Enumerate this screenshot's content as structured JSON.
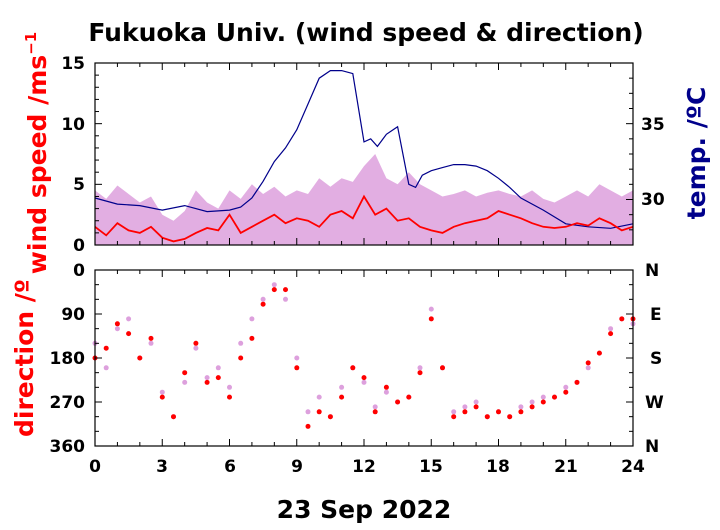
{
  "chart_data": [
    {
      "type": "line",
      "title": "Fukuoka Univ. (wind speed & direction)",
      "ylabel": "wind speed /ms",
      "ylabel_sup": "−1",
      "y2label": "temp. /ºC",
      "xlim": [
        0,
        24
      ],
      "ylim": [
        0,
        15
      ],
      "y2lim": [
        27,
        39
      ],
      "yticks": [
        "0",
        "5",
        "10",
        "15"
      ],
      "y2ticks": [
        "30",
        "35"
      ],
      "series": [
        {
          "role": "wind speed gust",
          "color": "#dda0dd",
          "x": [
            0,
            0.5,
            1,
            1.5,
            2,
            2.5,
            3,
            3.5,
            4,
            4.5,
            5,
            5.5,
            6,
            6.5,
            7,
            7.5,
            8,
            8.5,
            9,
            9.5,
            10,
            10.5,
            11,
            11.5,
            12,
            12.5,
            13,
            13.5,
            14,
            14.5,
            15,
            15.5,
            16,
            16.5,
            17,
            17.5,
            18,
            18.5,
            19,
            19.5,
            20,
            20.5,
            21,
            21.5,
            22,
            22.5,
            23,
            23.5,
            24
          ],
          "values": [
            4.5,
            3.8,
            4.9,
            4.2,
            3.5,
            4.0,
            2.5,
            2.0,
            2.8,
            4.5,
            3.5,
            3.0,
            4.5,
            3.8,
            5.0,
            4.2,
            4.8,
            4.0,
            4.5,
            4.2,
            5.5,
            4.8,
            5.5,
            5.2,
            6.5,
            7.5,
            5.5,
            5.0,
            6.0,
            5.0,
            4.5,
            4.0,
            4.2,
            4.5,
            4.0,
            4.3,
            4.5,
            4.2,
            4.0,
            4.5,
            3.8,
            3.5,
            4.0,
            4.5,
            4.0,
            5.0,
            4.5,
            4.0,
            4.5
          ]
        },
        {
          "role": "wind speed mean",
          "color": "#ff0000",
          "x": [
            0,
            0.5,
            1,
            1.5,
            2,
            2.5,
            3,
            3.5,
            4,
            4.5,
            5,
            5.5,
            6,
            6.5,
            7,
            7.5,
            8,
            8.5,
            9,
            9.5,
            10,
            10.5,
            11,
            11.5,
            12,
            12.5,
            13,
            13.5,
            14,
            14.5,
            15,
            15.5,
            16,
            16.5,
            17,
            17.5,
            18,
            18.5,
            19,
            19.5,
            20,
            20.5,
            21,
            21.5,
            22,
            22.5,
            23,
            23.5,
            24
          ],
          "values": [
            1.5,
            0.8,
            1.8,
            1.2,
            1.0,
            1.5,
            0.6,
            0.3,
            0.5,
            1.0,
            1.4,
            1.2,
            2.5,
            1.0,
            1.5,
            2.0,
            2.5,
            1.8,
            2.2,
            2.0,
            1.5,
            2.5,
            2.8,
            2.2,
            4.0,
            2.5,
            3.0,
            2.0,
            2.2,
            1.5,
            1.2,
            1.0,
            1.5,
            1.8,
            2.0,
            2.2,
            2.8,
            2.5,
            2.2,
            1.8,
            1.5,
            1.4,
            1.5,
            1.8,
            1.6,
            2.2,
            1.8,
            1.2,
            1.5
          ]
        },
        {
          "role": "temperature",
          "axis": "right",
          "color": "#00008b",
          "x": [
            0,
            1,
            2,
            3,
            4,
            5,
            6,
            6.5,
            7,
            7.5,
            8,
            8.5,
            9,
            9.5,
            10,
            10.5,
            11,
            11.5,
            12,
            12.3,
            12.6,
            13,
            13.5,
            14,
            14.3,
            14.6,
            15,
            15.5,
            16,
            16.5,
            17,
            17.5,
            18,
            18.5,
            19,
            20,
            21,
            22,
            23,
            24
          ],
          "values": [
            30.1,
            29.7,
            29.6,
            29.3,
            29.6,
            29.2,
            29.3,
            29.5,
            30.1,
            31.2,
            32.5,
            33.4,
            34.6,
            36.3,
            38.0,
            38.5,
            38.5,
            38.3,
            33.8,
            34.0,
            33.5,
            34.3,
            34.8,
            31.0,
            30.8,
            31.6,
            31.9,
            32.1,
            32.3,
            32.3,
            32.2,
            31.9,
            31.4,
            30.8,
            30.1,
            29.3,
            28.4,
            28.2,
            28.1,
            28.4
          ]
        }
      ]
    },
    {
      "type": "scatter",
      "xlabel": "23 Sep 2022",
      "ylabel": "direction /º",
      "xlim": [
        0,
        24
      ],
      "ylim": [
        0,
        360
      ],
      "xticks": [
        "0",
        "3",
        "6",
        "9",
        "12",
        "15",
        "18",
        "21",
        "24"
      ],
      "yticks": [
        "0",
        "90",
        "180",
        "270",
        "360"
      ],
      "y2ticks": [
        "N",
        "E",
        "S",
        "W",
        "N"
      ],
      "series": [
        {
          "role": "direction scatter",
          "color": "#dda0dd",
          "x": [
            0,
            0.5,
            1,
            1.5,
            2,
            2.5,
            3,
            3.5,
            4,
            4.5,
            5,
            5.5,
            6,
            6.5,
            7,
            7.5,
            8,
            8.5,
            9,
            9.5,
            10,
            10.5,
            11,
            11.5,
            12,
            12.5,
            13,
            13.5,
            14,
            14.5,
            15,
            15.5,
            16,
            16.5,
            17,
            17.5,
            18,
            18.5,
            19,
            19.5,
            20,
            20.5,
            21,
            21.5,
            22,
            22.5,
            23,
            23.5,
            24
          ],
          "values": [
            150,
            200,
            120,
            100,
            180,
            150,
            250,
            300,
            230,
            160,
            220,
            200,
            240,
            150,
            100,
            60,
            30,
            60,
            180,
            290,
            260,
            300,
            240,
            200,
            230,
            280,
            250,
            270,
            260,
            200,
            80,
            200,
            290,
            280,
            270,
            300,
            290,
            300,
            280,
            270,
            260,
            260,
            240,
            230,
            200,
            170,
            120,
            100,
            110
          ]
        },
        {
          "role": "direction mean",
          "color": "#ff0000",
          "x": [
            0,
            0.5,
            1,
            1.5,
            2,
            2.5,
            3,
            3.5,
            4,
            4.5,
            5,
            5.5,
            6,
            6.5,
            7,
            7.5,
            8,
            8.5,
            9,
            9.5,
            10,
            10.5,
            11,
            11.5,
            12,
            12.5,
            13,
            13.5,
            14,
            14.5,
            15,
            15.5,
            16,
            16.5,
            17,
            17.5,
            18,
            18.5,
            19,
            19.5,
            20,
            20.5,
            21,
            21.5,
            22,
            22.5,
            23,
            23.5,
            24
          ],
          "values": [
            180,
            160,
            110,
            130,
            180,
            140,
            260,
            300,
            210,
            150,
            230,
            220,
            260,
            180,
            140,
            70,
            40,
            40,
            200,
            320,
            290,
            300,
            260,
            200,
            220,
            290,
            240,
            270,
            260,
            210,
            100,
            200,
            300,
            290,
            280,
            300,
            290,
            300,
            290,
            280,
            270,
            260,
            250,
            230,
            190,
            170,
            130,
            100,
            100
          ]
        }
      ]
    }
  ]
}
